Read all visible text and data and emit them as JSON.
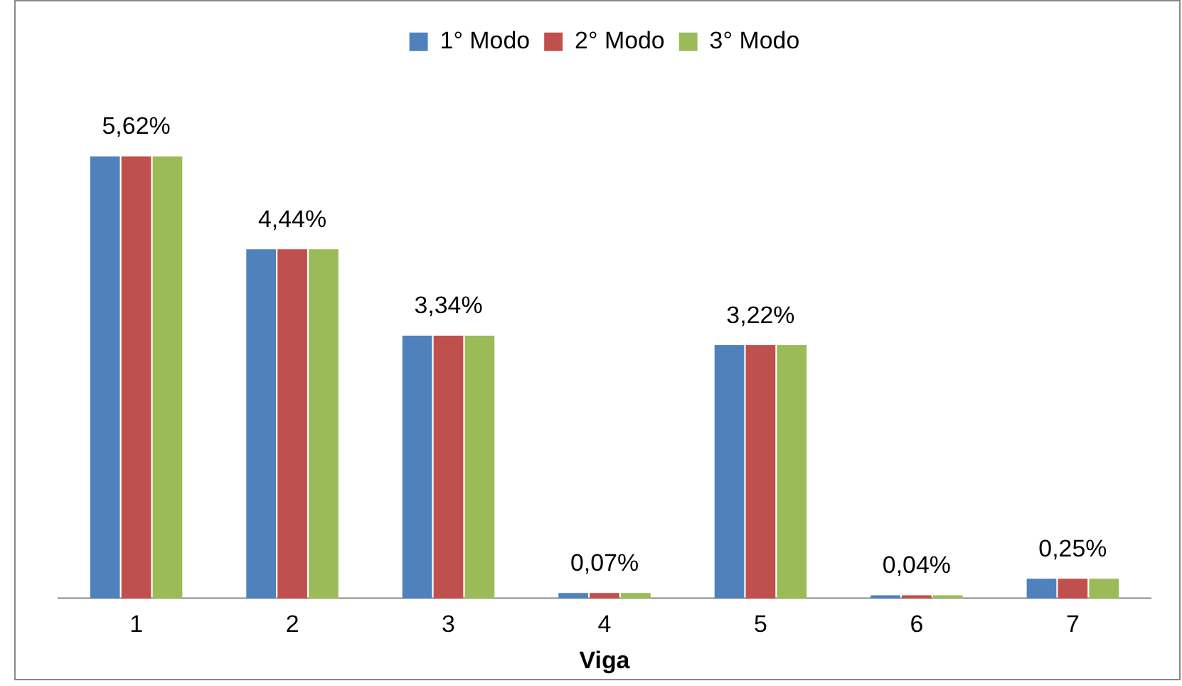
{
  "chart_data": {
    "type": "bar",
    "xlabel": "Viga",
    "categories": [
      "1",
      "2",
      "3",
      "4",
      "5",
      "6",
      "7"
    ],
    "series": [
      {
        "name": "1° Modo",
        "color": "#4f81bd",
        "values": [
          5.62,
          4.44,
          3.34,
          0.07,
          3.22,
          0.04,
          0.25
        ]
      },
      {
        "name": "2° Modo",
        "color": "#c0504d",
        "values": [
          5.62,
          4.44,
          3.34,
          0.07,
          3.22,
          0.04,
          0.25
        ],
        "value_labels": [
          "5,62%",
          "4,44%",
          "3,34%",
          "0,07%",
          "3,22%",
          "0,04%",
          "0,25%"
        ]
      },
      {
        "name": "3° Modo",
        "color": "#9bbb59",
        "values": [
          5.62,
          4.44,
          3.34,
          0.07,
          3.22,
          0.04,
          0.25
        ]
      }
    ],
    "legend": "top",
    "grid": false
  }
}
